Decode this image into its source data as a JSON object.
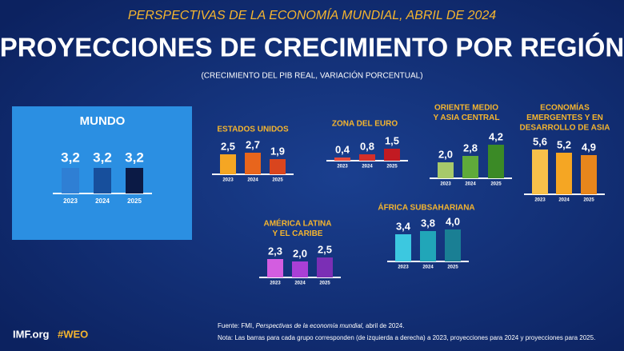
{
  "header": {
    "supertitle": "PERSPECTIVAS DE LA ECONOMÍA MUNDIAL, ABRIL DE 2024",
    "title": "PROYECCIONES DE CRECIMIENTO POR REGIÓN",
    "subtitle": "(CRECIMIENTO DEL PIB REAL, VARIACIÓN PORCENTUAL)"
  },
  "chart_data": [
    {
      "type": "bar",
      "title": [
        "MUNDO"
      ],
      "categories": [
        "2023",
        "2024",
        "2025"
      ],
      "values": [
        3.2,
        3.2,
        3.2
      ],
      "value_labels": [
        "3,2",
        "3,2",
        "3,2"
      ],
      "colors": [
        "#2f7fd4",
        "#174f9c",
        "#0b1a45"
      ]
    },
    {
      "type": "bar",
      "title": [
        "ESTADOS UNIDOS"
      ],
      "categories": [
        "2023",
        "2024",
        "2025"
      ],
      "values": [
        2.5,
        2.7,
        1.9
      ],
      "value_labels": [
        "2,5",
        "2,7",
        "1,9"
      ],
      "colors": [
        "#f5a623",
        "#e8651c",
        "#d9451e"
      ]
    },
    {
      "type": "bar",
      "title": [
        "ZONA DEL EURO"
      ],
      "categories": [
        "2023",
        "2024",
        "2025"
      ],
      "values": [
        0.4,
        0.8,
        1.5
      ],
      "value_labels": [
        "0,4",
        "0,8",
        "1,5"
      ],
      "colors": [
        "#e84b3c",
        "#d42f2a",
        "#c21a22"
      ]
    },
    {
      "type": "bar",
      "title": [
        "ORIENTE MEDIO",
        "Y ASIA CENTRAL"
      ],
      "categories": [
        "2023",
        "2024",
        "2025"
      ],
      "values": [
        2.0,
        2.8,
        4.2
      ],
      "value_labels": [
        "2,0",
        "2,8",
        "4,2"
      ],
      "colors": [
        "#a7c96a",
        "#5faa3a",
        "#3b8a26"
      ]
    },
    {
      "type": "bar",
      "title": [
        "ECONOMÍAS",
        "EMERGENTES Y EN",
        "DESARROLLO DE ASIA"
      ],
      "categories": [
        "2023",
        "2024",
        "2025"
      ],
      "values": [
        5.6,
        5.2,
        4.9
      ],
      "value_labels": [
        "5,6",
        "5,2",
        "4,9"
      ],
      "colors": [
        "#f7c04a",
        "#f5a623",
        "#e8861c"
      ]
    },
    {
      "type": "bar",
      "title": [
        "AMÉRICA LATINA",
        "Y EL CARIBE"
      ],
      "categories": [
        "2023",
        "2024",
        "2025"
      ],
      "values": [
        2.3,
        2.0,
        2.5
      ],
      "value_labels": [
        "2,3",
        "2,0",
        "2,5"
      ],
      "colors": [
        "#d35de0",
        "#a93fd6",
        "#7b2fb5"
      ]
    },
    {
      "type": "bar",
      "title": [
        "ÁFRICA SUBSAHARIANA"
      ],
      "categories": [
        "2023",
        "2024",
        "2025"
      ],
      "values": [
        3.4,
        3.8,
        4.0
      ],
      "value_labels": [
        "3,4",
        "3,8",
        "4,0"
      ],
      "colors": [
        "#3cc8e0",
        "#21a6b8",
        "#1a7f94"
      ]
    }
  ],
  "footer": {
    "links": [
      "IMF.org",
      "#WEO"
    ],
    "source": [
      "Fuente: FMI, ",
      "Perspectivas de la economía mundial",
      ", abril de 2024."
    ],
    "note": "Nota: Las barras para cada grupo corresponden (de izquierda a derecha) a 2023, proyecciones para 2024 y proyecciones para 2025."
  }
}
